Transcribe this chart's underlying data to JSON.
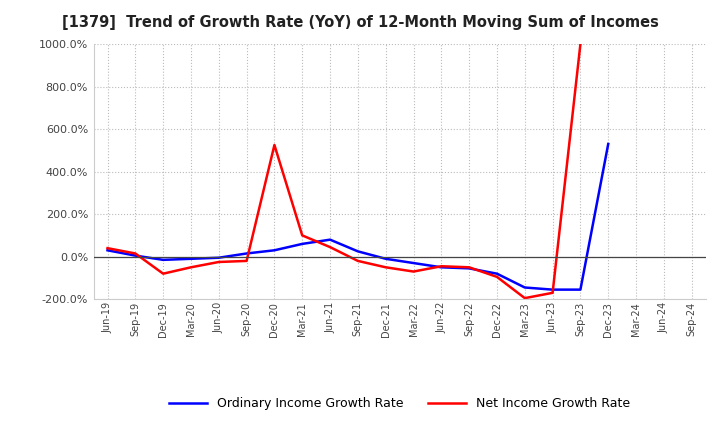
{
  "title": "[1379]  Trend of Growth Rate (YoY) of 12-Month Moving Sum of Incomes",
  "dates": [
    "Jun-19",
    "Sep-19",
    "Dec-19",
    "Mar-20",
    "Jun-20",
    "Sep-20",
    "Dec-20",
    "Mar-21",
    "Jun-21",
    "Sep-21",
    "Dec-21",
    "Mar-22",
    "Jun-22",
    "Sep-22",
    "Dec-22",
    "Mar-23",
    "Jun-23",
    "Sep-23",
    "Dec-23",
    "Mar-24",
    "Jun-24",
    "Sep-24"
  ],
  "ordinary": [
    30,
    5,
    -15,
    -10,
    -5,
    15,
    30,
    60,
    80,
    25,
    -10,
    -30,
    -50,
    -55,
    -80,
    -145,
    -155,
    -155,
    530,
    null,
    null,
    null
  ],
  "net": [
    40,
    15,
    -80,
    -50,
    -25,
    -20,
    525,
    100,
    45,
    -20,
    -50,
    -70,
    -45,
    -50,
    -95,
    -195,
    -170,
    1000,
    null,
    null,
    null,
    null
  ],
  "ordinary_color": "#0000ff",
  "net_color": "#ff0000",
  "background_color": "#ffffff",
  "grid_color": "#bbbbbb",
  "ylim": [
    -200,
    1000
  ],
  "yticks": [
    -200,
    0,
    200,
    400,
    600,
    800,
    1000
  ],
  "legend_labels": [
    "Ordinary Income Growth Rate",
    "Net Income Growth Rate"
  ],
  "line_width": 1.8
}
